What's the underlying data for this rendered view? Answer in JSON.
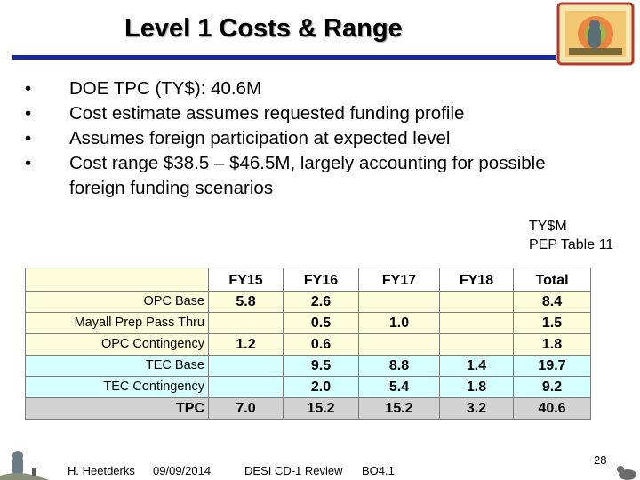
{
  "slide": {
    "title": "Level 1 Costs & Range",
    "bullets": [
      "DOE TPC (TY$): 40.6M",
      "Cost estimate assumes requested funding profile",
      "Assumes foreign participation at expected level",
      "Cost range $38.5 – $46.5M, largely accounting for possible foreign funding scenarios"
    ],
    "bullet_symbol": "•",
    "note_line1": "TY$M",
    "note_line2": "PEP Table 11"
  },
  "table": {
    "columns": [
      "FY15",
      "FY16",
      "FY17",
      "FY18",
      "Total"
    ],
    "rows": [
      {
        "label": "OPC Base",
        "values": [
          "5.8",
          "2.6",
          "",
          "",
          "8.4"
        ]
      },
      {
        "label": "Mayall Prep Pass Thru",
        "values": [
          "",
          "0.5",
          "1.0",
          "",
          "1.5"
        ]
      },
      {
        "label": "OPC Contingency",
        "values": [
          "1.2",
          "0.6",
          "",
          "",
          "1.8"
        ]
      },
      {
        "label": "TEC Base",
        "values": [
          "",
          "9.5",
          "8.8",
          "1.4",
          "19.7"
        ]
      },
      {
        "label": "TEC Contingency",
        "values": [
          "",
          "2.0",
          "5.4",
          "1.8",
          "9.2"
        ]
      },
      {
        "label": "TPC",
        "values": [
          "7.0",
          "15.2",
          "15.2",
          "3.2",
          "40.6"
        ]
      }
    ]
  },
  "footer": {
    "author": "H. Heetderks",
    "date": "09/09/2014",
    "meeting": "DESI CD-1 Review",
    "session": "BO4.1",
    "page": "28"
  },
  "colors": {
    "rule": "#1b2a9a",
    "opc_fill": "#fdfddc",
    "tec_fill": "#d6ffff",
    "tpc_fill": "#d3d3d3"
  },
  "icons": {
    "logo": "energy-logo-icon",
    "footer_left": "telescope-figure-icon",
    "footer_right": "creature-figure-icon"
  }
}
